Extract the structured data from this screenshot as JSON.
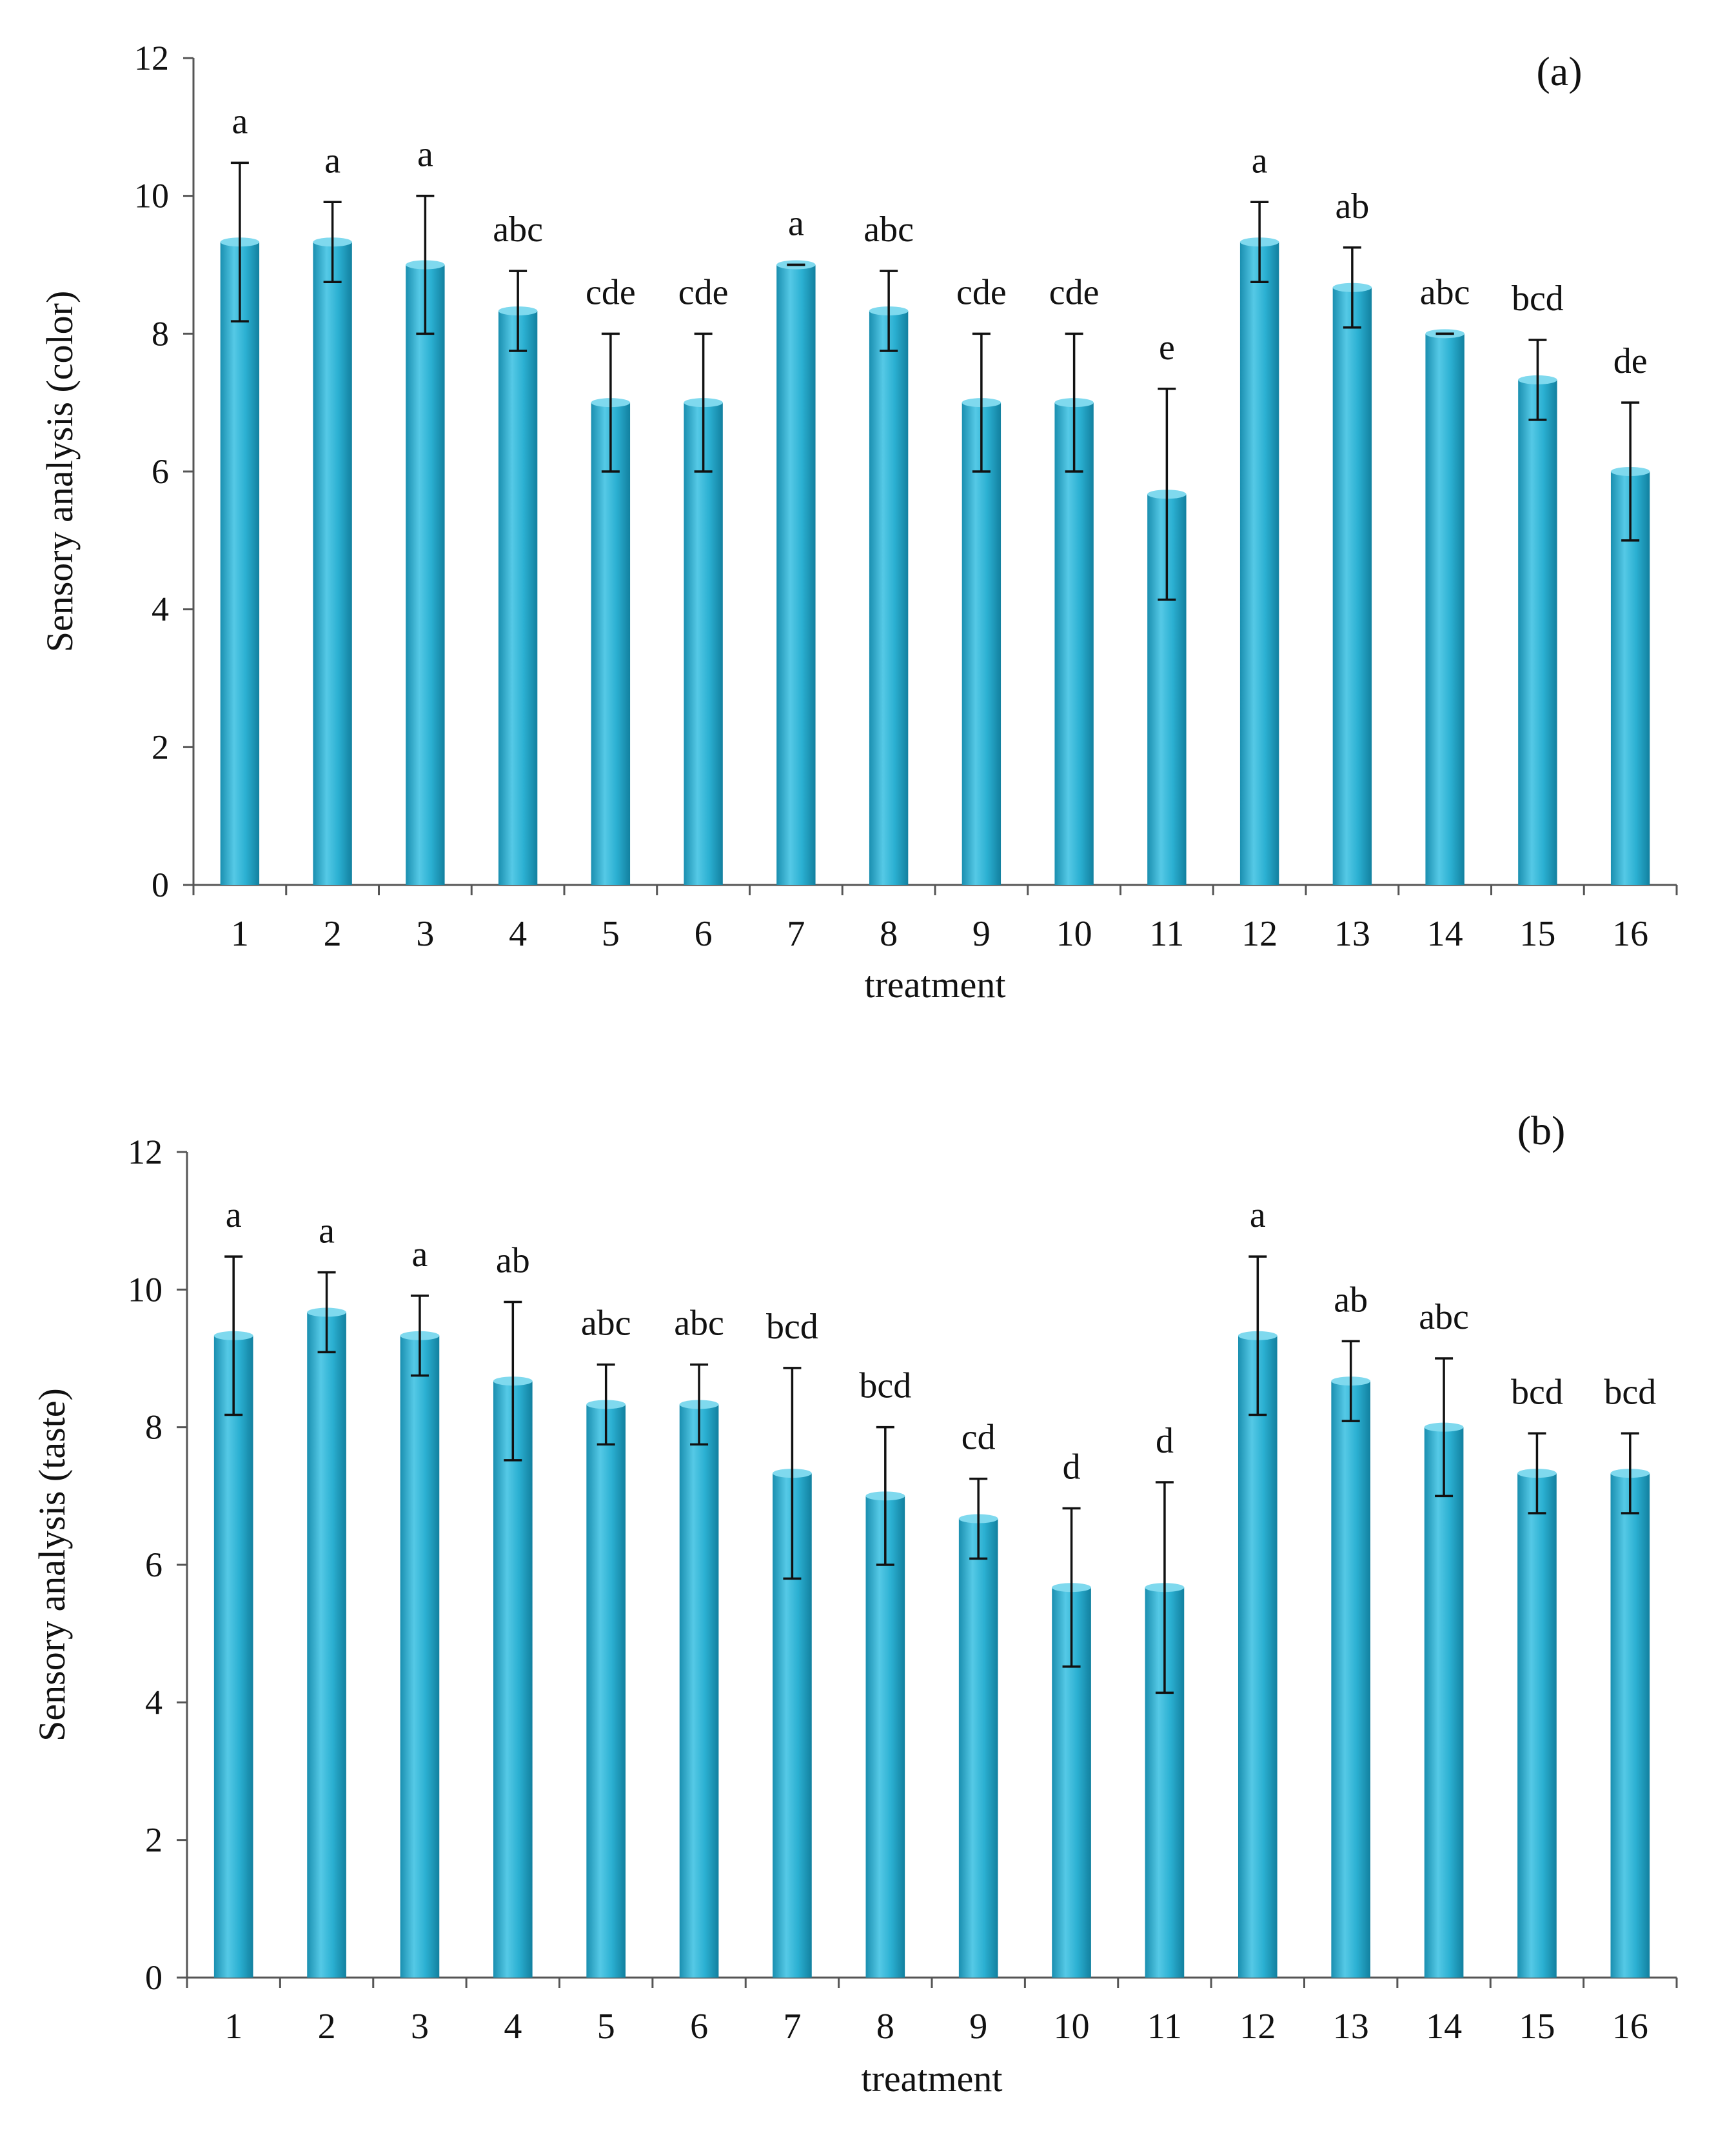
{
  "chart_data": [
    {
      "type": "bar",
      "panel_label": "(a)",
      "xlabel": "treatment",
      "ylabel": "Sensory analysis (color)",
      "ylim": [
        0,
        12
      ],
      "yticks": [
        0,
        2,
        4,
        6,
        8,
        10,
        12
      ],
      "grid": false,
      "categories": [
        "1",
        "2",
        "3",
        "4",
        "5",
        "6",
        "7",
        "8",
        "9",
        "10",
        "11",
        "12",
        "13",
        "14",
        "15",
        "16"
      ],
      "values": [
        9.33,
        9.33,
        9.0,
        8.33,
        7.0,
        7.0,
        9.0,
        8.33,
        7.0,
        7.0,
        5.67,
        9.33,
        8.67,
        8.0,
        7.33,
        6.0
      ],
      "errors": [
        1.15,
        0.58,
        1.0,
        0.58,
        1.0,
        1.0,
        0.0,
        0.58,
        1.0,
        1.0,
        1.53,
        0.58,
        0.58,
        0.0,
        0.58,
        1.0
      ],
      "letters": [
        "a",
        "a",
        "a",
        "abc",
        "cde",
        "cde",
        "a",
        "abc",
        "cde",
        "cde",
        "e",
        "a",
        "ab",
        "abc",
        "bcd",
        "de"
      ],
      "bar_color": "#2bb0d2"
    },
    {
      "type": "bar",
      "panel_label": "(b)",
      "xlabel": "treatment",
      "ylabel": "Sensory analysis (taste)",
      "ylim": [
        0,
        12
      ],
      "yticks": [
        0,
        2,
        4,
        6,
        8,
        10,
        12
      ],
      "grid": false,
      "categories": [
        "1",
        "2",
        "3",
        "4",
        "5",
        "6",
        "7",
        "8",
        "9",
        "10",
        "11",
        "12",
        "13",
        "14",
        "15",
        "16"
      ],
      "values": [
        9.33,
        9.67,
        9.33,
        8.67,
        8.33,
        8.33,
        7.33,
        7.0,
        6.67,
        5.67,
        5.67,
        9.33,
        8.67,
        8.0,
        7.33,
        7.33
      ],
      "errors": [
        1.15,
        0.58,
        0.58,
        1.15,
        0.58,
        0.58,
        1.53,
        1.0,
        0.58,
        1.15,
        1.53,
        1.15,
        0.58,
        1.0,
        0.58,
        0.58
      ],
      "letters": [
        "a",
        "a",
        "a",
        "ab",
        "abc",
        "abc",
        "bcd",
        "bcd",
        "cd",
        "d",
        "d",
        "a",
        "ab",
        "abc",
        "bcd",
        "bcd"
      ],
      "bar_color": "#2bb0d2"
    }
  ]
}
